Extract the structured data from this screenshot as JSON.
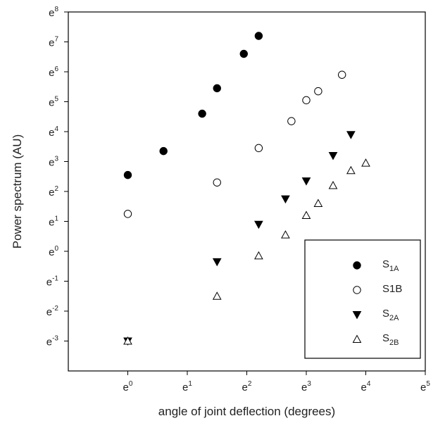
{
  "chart_data": {
    "type": "scatter",
    "xlabel": "angle of joint deflection (degrees)",
    "ylabel": "Power spectrum (AU)",
    "xscale": "log-e",
    "yscale": "log-e",
    "xlim": [
      -1,
      5
    ],
    "ylim": [
      -4,
      8
    ],
    "xticks": [
      0,
      1,
      2,
      3,
      4,
      5
    ],
    "yticks": [
      -3,
      -2,
      -1,
      0,
      1,
      2,
      3,
      4,
      5,
      6,
      7,
      8
    ],
    "tick_base": "e",
    "grid": false,
    "legend_position": "bottom-right",
    "series": [
      {
        "name": "S1A",
        "label_main": "S",
        "label_sub": "1A",
        "marker": "circle-filled",
        "x": [
          0.0,
          0.6,
          1.25,
          1.5,
          1.95,
          2.2
        ],
        "y": [
          2.55,
          3.35,
          4.6,
          5.45,
          6.6,
          7.2
        ]
      },
      {
        "name": "S1B",
        "label_main": "S1B",
        "label_sub": "",
        "marker": "circle-open",
        "x": [
          0.0,
          1.5,
          2.2,
          2.75,
          3.0,
          3.2,
          3.6
        ],
        "y": [
          1.25,
          2.3,
          3.45,
          4.35,
          5.05,
          5.35,
          5.9
        ]
      },
      {
        "name": "S2A",
        "label_main": "S",
        "label_sub": "2A",
        "marker": "triangle-down-filled",
        "x": [
          0.0,
          1.5,
          2.2,
          2.65,
          3.0,
          3.45,
          3.75
        ],
        "y": [
          -3.0,
          -0.35,
          0.9,
          1.75,
          2.35,
          3.2,
          3.9
        ]
      },
      {
        "name": "S2B",
        "label_main": "S",
        "label_sub": "2B",
        "marker": "triangle-up-open",
        "x": [
          0.0,
          1.5,
          2.2,
          2.65,
          3.0,
          3.2,
          3.45,
          3.75,
          4.0
        ],
        "y": [
          -3.0,
          -1.5,
          -0.15,
          0.55,
          1.2,
          1.6,
          2.2,
          2.7,
          2.95
        ]
      }
    ]
  }
}
